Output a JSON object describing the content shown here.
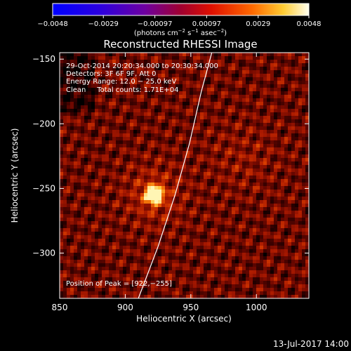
{
  "chart_data": {
    "type": "heatmap",
    "title": "Reconstructed RHESSI Image",
    "xlabel": "Heliocentric X (arcsec)",
    "ylabel": "Heliocentric Y (arcsec)",
    "xlim": [
      850,
      1040
    ],
    "ylim": [
      -335,
      -145
    ],
    "x_ticks": [
      850,
      900,
      950,
      1000
    ],
    "y_ticks": [
      -150,
      -200,
      -250,
      -300
    ],
    "x_tick_labels": [
      "850",
      "900",
      "950",
      "1000"
    ],
    "y_tick_labels": [
      "−150",
      "−200",
      "−250",
      "−300"
    ],
    "colorbar": {
      "min": -0.0048,
      "max": 0.0048,
      "ticks": [
        -0.0048,
        -0.0029,
        -0.00097,
        0.00097,
        0.0029,
        0.0048
      ],
      "tick_labels": [
        "−0.0048",
        "−0.0029",
        "−0.00097",
        "0.00097",
        "0.0029",
        "0.0048"
      ],
      "unit_parts": [
        "(photons cm",
        "−2",
        " s",
        "−1",
        " asec",
        "−2",
        ")"
      ]
    },
    "annotations": [
      "29-Oct-2014 20:20:34.000 to 20:30:34.000",
      "Detectors: 3F 6F 9F, Att 0",
      "Energy Range: 12.0 − 25.0 keV",
      "Clean     Total counts: 1.71E+04"
    ],
    "peak": {
      "x": 922,
      "y": -255,
      "label": "Position of Peak = [922,−255]"
    },
    "limb_curve": [
      [
        910,
        -335
      ],
      [
        925,
        -295
      ],
      [
        938,
        -255
      ],
      [
        949,
        -215
      ],
      [
        958,
        -175
      ],
      [
        966,
        -145
      ]
    ],
    "footer": "13-Jul-2017 14:00",
    "colors": {
      "background": "#000000",
      "text": "#ffffff",
      "limb": "#ffffff"
    }
  }
}
